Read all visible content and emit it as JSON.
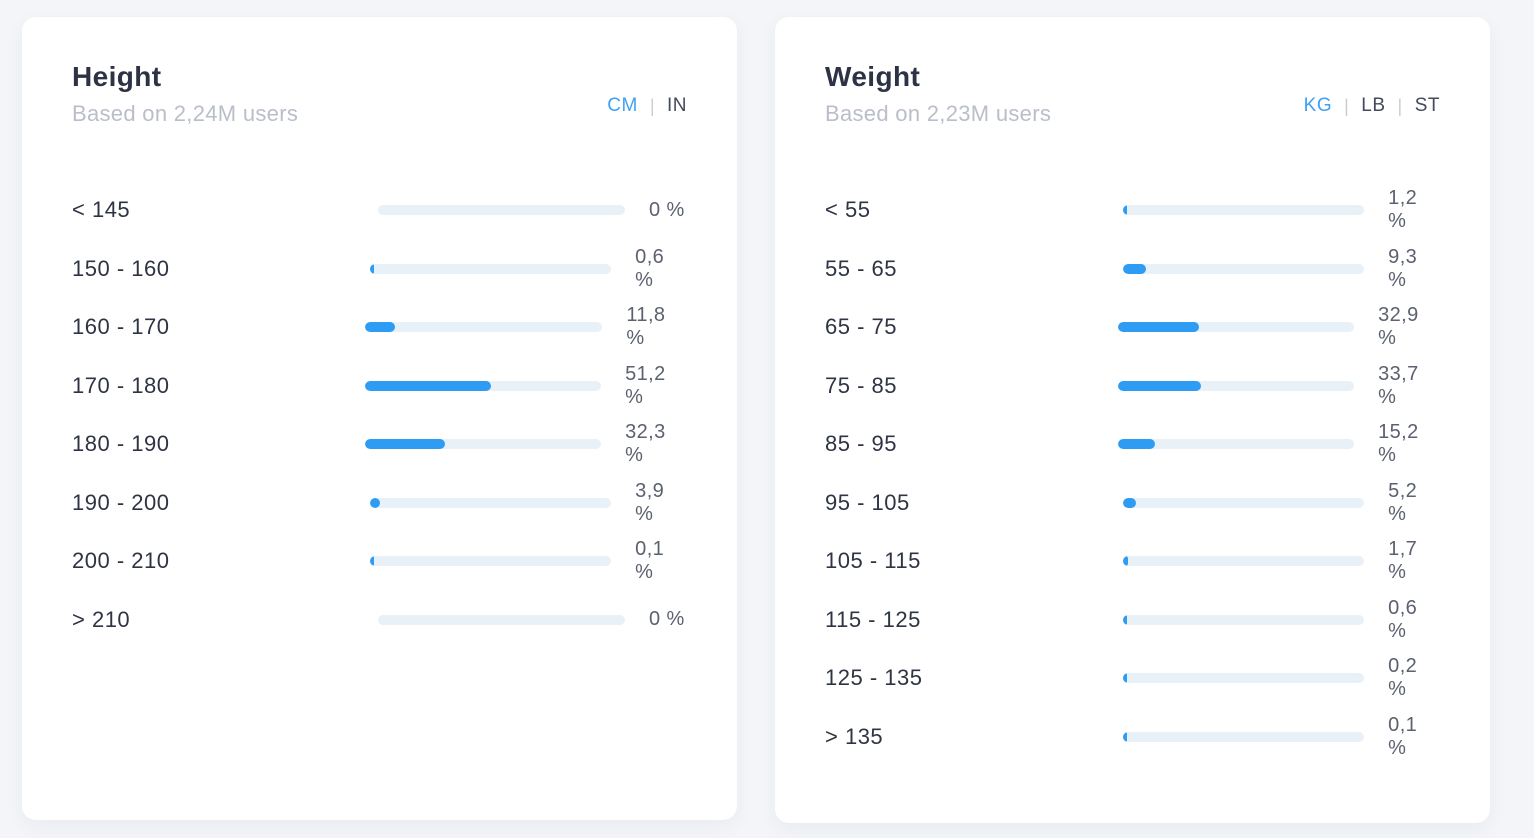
{
  "colors": {
    "page_background": "#f3f5f8",
    "card_background": "#ffffff",
    "accent_blue": "#2e9cf3",
    "bar_track": "#e8f0f8",
    "title_text": "#2d3345",
    "subtitle_text": "#b9bec9",
    "label_text": "#2e3443",
    "value_text": "#5b6170",
    "unit_active": "#3ea1f2",
    "unit_inactive": "#434a5b",
    "unit_separator": "#c9ccd4"
  },
  "cards": [
    {
      "title": "Height",
      "subtitle": "Based on 2,24M users",
      "units": [
        {
          "label": "CM",
          "active": true
        },
        {
          "label": "IN",
          "active": false
        }
      ],
      "rows": [
        {
          "label": "< 145",
          "value": 0,
          "display": "0 %"
        },
        {
          "label": "150 - 160",
          "value": 0.6,
          "display": "0,6 %"
        },
        {
          "label": "160 - 170",
          "value": 11.8,
          "display": "11,8 %"
        },
        {
          "label": "170 - 180",
          "value": 51.2,
          "display": "51,2 %"
        },
        {
          "label": "180 - 190",
          "value": 32.3,
          "display": "32,3 %"
        },
        {
          "label": "190 - 200",
          "value": 3.9,
          "display": "3,9 %"
        },
        {
          "label": "200 - 210",
          "value": 0.1,
          "display": "0,1 %"
        },
        {
          "label": "> 210",
          "value": 0,
          "display": "0 %"
        }
      ]
    },
    {
      "title": "Weight",
      "subtitle": "Based on 2,23M users",
      "units": [
        {
          "label": "KG",
          "active": true
        },
        {
          "label": "LB",
          "active": false
        },
        {
          "label": "ST",
          "active": false
        }
      ],
      "rows": [
        {
          "label": "< 55",
          "value": 1.2,
          "display": "1,2 %"
        },
        {
          "label": "55 - 65",
          "value": 9.3,
          "display": "9,3 %"
        },
        {
          "label": "65 - 75",
          "value": 32.9,
          "display": "32,9 %"
        },
        {
          "label": "75 - 85",
          "value": 33.7,
          "display": "33,7 %"
        },
        {
          "label": "85 - 95",
          "value": 15.2,
          "display": "15,2 %"
        },
        {
          "label": "95 - 105",
          "value": 5.2,
          "display": "5,2 %"
        },
        {
          "label": "105 - 115",
          "value": 1.7,
          "display": "1,7 %"
        },
        {
          "label": "115 - 125",
          "value": 0.6,
          "display": "0,6 %"
        },
        {
          "label": "125 - 135",
          "value": 0.2,
          "display": "0,2 %"
        },
        {
          "label": "> 135",
          "value": 0.1,
          "display": "0,1 %"
        }
      ]
    }
  ],
  "chart_data": [
    {
      "type": "bar",
      "orientation": "horizontal",
      "title": "Height",
      "subtitle": "Based on 2,24M users",
      "unit": "CM",
      "categories": [
        "< 145",
        "150 - 160",
        "160 - 170",
        "170 - 180",
        "180 - 190",
        "190 - 200",
        "200 - 210",
        "> 210"
      ],
      "values": [
        0,
        0.6,
        11.8,
        51.2,
        32.3,
        3.9,
        0.1,
        0
      ],
      "value_labels": [
        "0 %",
        "0,6 %",
        "11,8 %",
        "51,2 %",
        "32,3 %",
        "3,9 %",
        "0,1 %",
        "0 %"
      ],
      "xlabel": "",
      "ylabel": "",
      "xlim": [
        0,
        100
      ],
      "grid": false,
      "legend": "none"
    },
    {
      "type": "bar",
      "orientation": "horizontal",
      "title": "Weight",
      "subtitle": "Based on 2,23M users",
      "unit": "KG",
      "categories": [
        "< 55",
        "55 - 65",
        "65 - 75",
        "75 - 85",
        "85 - 95",
        "95 - 105",
        "105 - 115",
        "115 - 125",
        "125 - 135",
        "> 135"
      ],
      "values": [
        1.2,
        9.3,
        32.9,
        33.7,
        15.2,
        5.2,
        1.7,
        0.6,
        0.2,
        0.1
      ],
      "value_labels": [
        "1,2 %",
        "9,3 %",
        "32,9 %",
        "33,7 %",
        "15,2 %",
        "5,2 %",
        "1,7 %",
        "0,6 %",
        "0,2 %",
        "0,1 %"
      ],
      "xlabel": "",
      "ylabel": "",
      "xlim": [
        0,
        100
      ],
      "grid": false,
      "legend": "none"
    }
  ]
}
